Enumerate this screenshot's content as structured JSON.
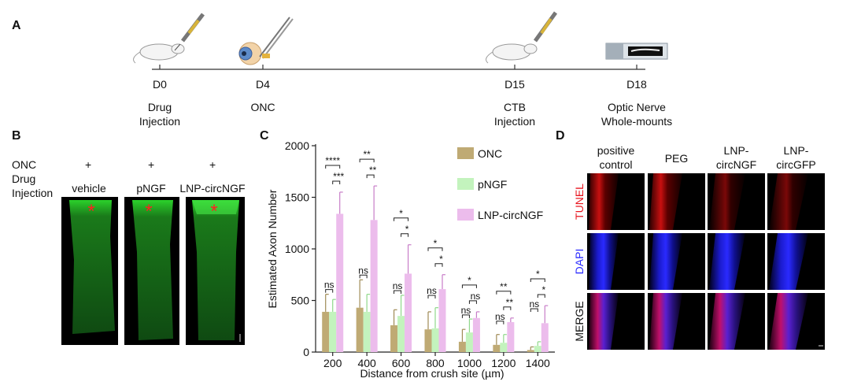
{
  "panels": {
    "a": {
      "letter": "A",
      "days": [
        {
          "day": "D0",
          "line1": "Drug",
          "line2": "Injection"
        },
        {
          "day": "D4",
          "line1": "ONC",
          "line2": ""
        },
        {
          "day": "D15",
          "line1": "CTB",
          "line2": "Injection"
        },
        {
          "day": "D18",
          "line1": "Optic Nerve",
          "line2": "Whole-mounts"
        }
      ]
    },
    "b": {
      "letter": "B",
      "row1_label": "ONC",
      "row2_label_line1": "Drug",
      "row2_label_line2": "Injection",
      "plus": "+",
      "columns": [
        "vehicle",
        "pNGF",
        "LNP-circNGF"
      ],
      "marker": "*"
    },
    "c": {
      "letter": "C"
    },
    "d": {
      "letter": "D",
      "columns": [
        {
          "line1": "positive",
          "line2": "control"
        },
        {
          "line1": "PEG",
          "line2": ""
        },
        {
          "line1": "LNP-",
          "line2": "circNGF"
        },
        {
          "line1": "LNP-",
          "line2": "circGFP"
        }
      ],
      "rows": [
        {
          "label": "TUNEL",
          "color": "#e8141e"
        },
        {
          "label": "DAPI",
          "color": "#2a2aff"
        },
        {
          "label": "MERGE",
          "color": "#111111"
        }
      ]
    }
  },
  "chart_data": {
    "type": "bar",
    "xlabel": "Distance from crush site (µm)",
    "ylabel": "Estimated Axon Number",
    "categories": [
      "200",
      "400",
      "600",
      "800",
      "1000",
      "1200",
      "1400"
    ],
    "ylim": [
      0,
      2000
    ],
    "yticks": [
      "0",
      "500",
      "1000",
      "1500",
      "2000"
    ],
    "legend_position": "right",
    "series": [
      {
        "name": "ONC",
        "color": "#bfaa74",
        "values": [
          390,
          430,
          260,
          220,
          100,
          70,
          20
        ],
        "errors": [
          170,
          270,
          150,
          170,
          120,
          100,
          30
        ]
      },
      {
        "name": "pNGF",
        "color": "#c3f3bd",
        "values": [
          390,
          390,
          350,
          230,
          190,
          90,
          60
        ],
        "errors": [
          120,
          170,
          200,
          200,
          130,
          80,
          40
        ]
      },
      {
        "name": "LNP-circNGF",
        "color": "#ecbcec",
        "values": [
          1340,
          1280,
          760,
          610,
          330,
          290,
          280
        ],
        "errors": [
          210,
          330,
          280,
          140,
          60,
          40,
          170
        ]
      }
    ],
    "significance": [
      {
        "group": "200",
        "upper": "****",
        "lower": "***",
        "left": "ns"
      },
      {
        "group": "400",
        "upper": "**",
        "lower": "**",
        "left": "ns"
      },
      {
        "group": "600",
        "upper": "*",
        "lower": "*",
        "left": "ns"
      },
      {
        "group": "800",
        "upper": "*",
        "lower": "*",
        "left": "ns"
      },
      {
        "group": "1000",
        "upper": "*",
        "lower": "ns",
        "left": "ns"
      },
      {
        "group": "1200",
        "upper": "**",
        "lower": "**",
        "left": "ns"
      },
      {
        "group": "1400",
        "upper": "*",
        "lower": "*",
        "left": "ns"
      }
    ]
  }
}
